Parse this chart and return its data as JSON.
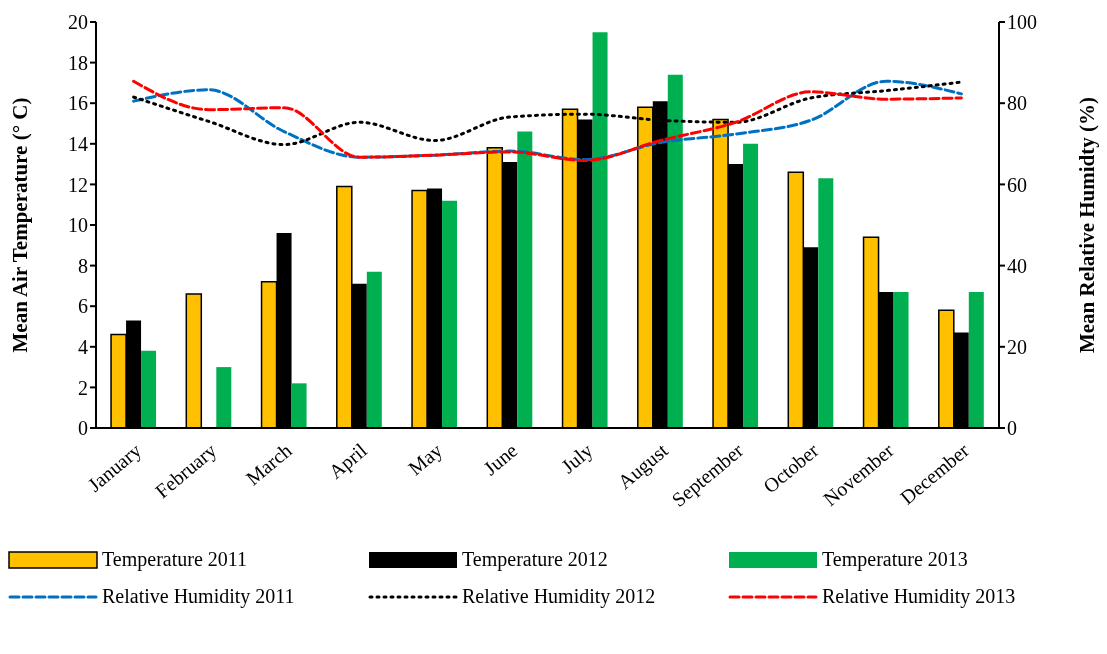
{
  "chart_data": {
    "type": "bar",
    "ylabel": "Mean Air Temperature (° C)",
    "y2label": "Mean Relative Humidty (%)",
    "categories": [
      "January",
      "February",
      "March",
      "April",
      "May",
      "June",
      "July",
      "August",
      "September",
      "October",
      "November",
      "December"
    ],
    "series": [
      {
        "name": "Temperature 2011",
        "color": "#ffc000",
        "values": [
          4.6,
          6.6,
          7.2,
          11.9,
          11.7,
          13.8,
          15.7,
          15.8,
          15.2,
          12.6,
          9.4,
          5.8
        ]
      },
      {
        "name": "Temperature 2012",
        "color": "#000000",
        "values": [
          5.3,
          null,
          9.6,
          7.1,
          11.8,
          13.1,
          15.2,
          16.1,
          13.0,
          8.9,
          6.7,
          4.7
        ]
      },
      {
        "name": "Temperature 2013",
        "color": "#00b050",
        "values": [
          3.8,
          3.0,
          2.2,
          7.7,
          11.2,
          14.6,
          19.5,
          17.4,
          14.0,
          12.3,
          6.7,
          6.7
        ]
      },
      {
        "name": "Relative Humidity 2011",
        "type": "line",
        "axis": "y2",
        "line_style": "dashed",
        "color": "#0070c0",
        "values": [
          80.5,
          83.3,
          73,
          66.7,
          67.2,
          68.2,
          66.1,
          70.3,
          72.4,
          75.8,
          85.4,
          82.3
        ]
      },
      {
        "name": "Relative Humidity 2012",
        "type": "line",
        "axis": "y2",
        "line_style": "dotted",
        "color": "#000000",
        "values": [
          81.5,
          75.5,
          69.8,
          75.3,
          70.8,
          76.6,
          77.3,
          75.8,
          75.3,
          81.3,
          83.1,
          85.2
        ]
      },
      {
        "name": "Relative Humidity 2013",
        "type": "line",
        "axis": "y2",
        "line_style": "dashed",
        "color": "#ff0000",
        "values": [
          85.4,
          78.4,
          78.9,
          66.7,
          67.2,
          68.0,
          65.9,
          70.8,
          75.3,
          82.8,
          81.0,
          81.3
        ]
      }
    ],
    "ylim": [
      0,
      20
    ],
    "yticks": [
      0,
      2,
      4,
      6,
      8,
      10,
      12,
      14,
      16,
      18,
      20
    ],
    "y2lim": [
      0,
      100
    ],
    "y2ticks": [
      0,
      20,
      40,
      60,
      80,
      100
    ],
    "grid": false,
    "legend": "bottom",
    "marker": "none"
  }
}
